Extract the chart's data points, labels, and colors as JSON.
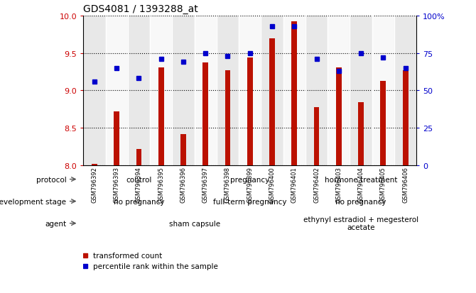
{
  "title": "GDS4081 / 1393288_at",
  "samples": [
    "GSM796392",
    "GSM796393",
    "GSM796394",
    "GSM796395",
    "GSM796396",
    "GSM796397",
    "GSM796398",
    "GSM796399",
    "GSM796400",
    "GSM796401",
    "GSM796402",
    "GSM796403",
    "GSM796404",
    "GSM796405",
    "GSM796406"
  ],
  "bar_values": [
    8.02,
    8.72,
    8.22,
    9.31,
    8.42,
    9.37,
    9.27,
    9.44,
    9.69,
    9.92,
    8.78,
    9.31,
    8.84,
    9.13,
    9.27
  ],
  "dot_values": [
    56,
    65,
    58,
    71,
    69,
    75,
    73,
    75,
    93,
    93,
    71,
    63,
    75,
    72,
    65
  ],
  "ylim_left": [
    8.0,
    10.0
  ],
  "ylim_right": [
    0,
    100
  ],
  "yticks_left": [
    8.0,
    8.5,
    9.0,
    9.5,
    10.0
  ],
  "yticks_right": [
    0,
    25,
    50,
    75,
    100
  ],
  "bar_color": "#bb1100",
  "dot_color": "#0000cc",
  "bar_bottom": 8.0,
  "protocol_groups": [
    {
      "label": "control",
      "start": 0,
      "end": 4,
      "color": "#bbeeaa"
    },
    {
      "label": "pregnancy",
      "start": 5,
      "end": 9,
      "color": "#77cc77"
    },
    {
      "label": "hormone treatment",
      "start": 10,
      "end": 14,
      "color": "#44bb44"
    }
  ],
  "dev_stage_groups": [
    {
      "label": "no pregnancy",
      "start": 0,
      "end": 4,
      "color": "#bbbbee"
    },
    {
      "label": "full-term pregnancy",
      "start": 5,
      "end": 9,
      "color": "#9988dd"
    },
    {
      "label": "no pregnancy",
      "start": 10,
      "end": 14,
      "color": "#bbbbee"
    }
  ],
  "agent_groups": [
    {
      "label": "sham capsule",
      "start": 0,
      "end": 9,
      "color": "#ffbbbb"
    },
    {
      "label": "ethynyl estradiol + megesterol\nacetate",
      "start": 10,
      "end": 14,
      "color": "#dd7777"
    }
  ],
  "row_labels": [
    "protocol",
    "development stage",
    "agent"
  ],
  "legend_bar_label": "transformed count",
  "legend_dot_label": "percentile rank within the sample",
  "left_color": "#cc0000",
  "right_color": "#0000cc",
  "plot_bg_color": "#ffffff",
  "col_bg_even": "#e8e8e8",
  "col_bg_odd": "#f8f8f8"
}
